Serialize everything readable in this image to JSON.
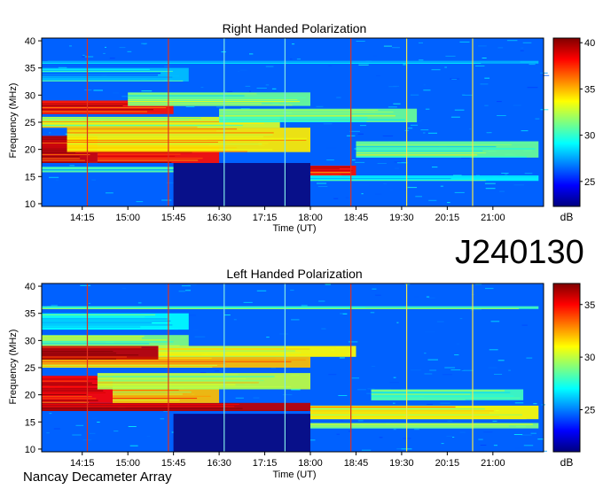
{
  "observation_code": "J240130",
  "instrument": "Nancay Decameter Array",
  "colors": {
    "background_navy": "#08108a",
    "colormap": [
      "#00007f",
      "#0000ff",
      "#007fff",
      "#00ffff",
      "#7fff7f",
      "#ffff00",
      "#ff7f00",
      "#ff0000",
      "#7f0000"
    ],
    "vertical_line_red": "#e0301e",
    "vertical_line_cyan": "#7fe6e6",
    "vertical_line_yellow": "#f2e84c"
  },
  "chart_data": [
    {
      "type": "heatmap",
      "title": "Right Handed Polarization",
      "xlabel": "Time (UT)",
      "ylabel": "Frequency (MHz)",
      "x_ticks": [
        "14:15",
        "15:00",
        "15:45",
        "16:30",
        "17:15",
        "18:00",
        "18:45",
        "19:30",
        "20:15",
        "21:00"
      ],
      "xlim": [
        "13:35",
        "21:50"
      ],
      "y_ticks": [
        10,
        15,
        20,
        25,
        30,
        35,
        40
      ],
      "ylim": [
        9.5,
        40.5
      ],
      "colorbar": {
        "label": "dB",
        "ticks": [
          25,
          30,
          35,
          40
        ],
        "range": [
          22.3,
          40.5
        ]
      },
      "vertical_lines": [
        {
          "time": "14:20",
          "color": "red"
        },
        {
          "time": "15:40",
          "color": "red"
        },
        {
          "time": "16:35",
          "color": "cyan"
        },
        {
          "time": "17:35",
          "color": "cyan"
        },
        {
          "time": "18:40",
          "color": "red"
        },
        {
          "time": "19:35",
          "color": "yellow"
        },
        {
          "time": "20:40",
          "color": "yellow"
        }
      ],
      "bands": [
        {
          "f": [
            15.8,
            16.8
          ],
          "t": [
            "13:35",
            "18:00"
          ],
          "level": 30
        },
        {
          "f": [
            17.5,
            22.5
          ],
          "t": [
            "13:35",
            "14:30"
          ],
          "level": 39
        },
        {
          "f": [
            17.5,
            20.5
          ],
          "t": [
            "14:30",
            "16:30"
          ],
          "level": 38
        },
        {
          "f": [
            19.5,
            24.0
          ],
          "t": [
            "14:00",
            "18:00"
          ],
          "level": 34
        },
        {
          "f": [
            24.0,
            26.0
          ],
          "t": [
            "13:35",
            "17:30"
          ],
          "level": 33
        },
        {
          "f": [
            26.5,
            29.0
          ],
          "t": [
            "13:35",
            "15:45"
          ],
          "level": 38
        },
        {
          "f": [
            28.0,
            30.5
          ],
          "t": [
            "15:00",
            "18:00"
          ],
          "level": 31
        },
        {
          "f": [
            25.0,
            27.5
          ],
          "t": [
            "16:30",
            "19:45"
          ],
          "level": 31
        },
        {
          "f": [
            15.0,
            17.0
          ],
          "t": [
            "18:00",
            "18:45"
          ],
          "level": 38
        },
        {
          "f": [
            18.5,
            21.5
          ],
          "t": [
            "18:45",
            "21:45"
          ],
          "level": 31
        },
        {
          "f": [
            14.2,
            15.2
          ],
          "t": [
            "18:00",
            "21:45"
          ],
          "level": 29
        },
        {
          "f": [
            35.8,
            36.3
          ],
          "t": [
            "13:35",
            "21:45"
          ],
          "level": 28
        },
        {
          "f": [
            32.5,
            35.0
          ],
          "t": [
            "13:35",
            "16:00"
          ],
          "level": 28
        }
      ],
      "dark_block": {
        "f": [
          9.5,
          17.5
        ],
        "t": [
          "15:45",
          "18:00"
        ]
      }
    },
    {
      "type": "heatmap",
      "title": "Left Handed Polarization",
      "xlabel": "Time (UT)",
      "ylabel": "Frequency (MHz)",
      "x_ticks": [
        "14:15",
        "15:00",
        "15:45",
        "16:30",
        "17:15",
        "18:00",
        "18:45",
        "19:30",
        "20:15",
        "21:00"
      ],
      "xlim": [
        "13:35",
        "21:50"
      ],
      "y_ticks": [
        10,
        15,
        20,
        25,
        30,
        35,
        40
      ],
      "ylim": [
        9.5,
        40.5
      ],
      "colorbar": {
        "label": "dB",
        "ticks": [
          25,
          30,
          35
        ],
        "range": [
          21.0,
          37.0
        ]
      },
      "vertical_lines": [
        {
          "time": "14:20",
          "color": "red"
        },
        {
          "time": "15:40",
          "color": "red"
        },
        {
          "time": "16:35",
          "color": "cyan"
        },
        {
          "time": "17:35",
          "color": "cyan"
        },
        {
          "time": "18:40",
          "color": "red"
        },
        {
          "time": "19:35",
          "color": "yellow"
        },
        {
          "time": "20:40",
          "color": "yellow"
        }
      ],
      "bands": [
        {
          "f": [
            17.0,
            18.5
          ],
          "t": [
            "13:35",
            "18:00"
          ],
          "level": 36
        },
        {
          "f": [
            18.5,
            23.5
          ],
          "t": [
            "13:35",
            "14:45"
          ],
          "level": 35
        },
        {
          "f": [
            18.5,
            21.5
          ],
          "t": [
            "14:45",
            "16:30"
          ],
          "level": 32
        },
        {
          "f": [
            21.0,
            24.0
          ],
          "t": [
            "14:30",
            "18:00"
          ],
          "level": 30
        },
        {
          "f": [
            25.0,
            27.0
          ],
          "t": [
            "13:35",
            "18:00"
          ],
          "level": 32
        },
        {
          "f": [
            26.5,
            29.0
          ],
          "t": [
            "13:35",
            "15:30"
          ],
          "level": 36
        },
        {
          "f": [
            27.0,
            29.0
          ],
          "t": [
            "15:30",
            "18:45"
          ],
          "level": 31
        },
        {
          "f": [
            29.0,
            31.0
          ],
          "t": [
            "13:35",
            "16:00"
          ],
          "level": 29
        },
        {
          "f": [
            15.5,
            18.0
          ],
          "t": [
            "18:00",
            "21:45"
          ],
          "level": 31
        },
        {
          "f": [
            19.0,
            21.0
          ],
          "t": [
            "19:00",
            "21:30"
          ],
          "level": 28
        },
        {
          "f": [
            13.8,
            14.8
          ],
          "t": [
            "18:00",
            "21:45"
          ],
          "level": 29
        },
        {
          "f": [
            35.8,
            36.3
          ],
          "t": [
            "13:35",
            "21:45"
          ],
          "level": 28
        },
        {
          "f": [
            32.0,
            35.0
          ],
          "t": [
            "13:35",
            "16:00"
          ],
          "level": 27
        }
      ],
      "dark_block": {
        "f": [
          9.5,
          16.5
        ],
        "t": [
          "15:45",
          "18:00"
        ]
      }
    }
  ]
}
